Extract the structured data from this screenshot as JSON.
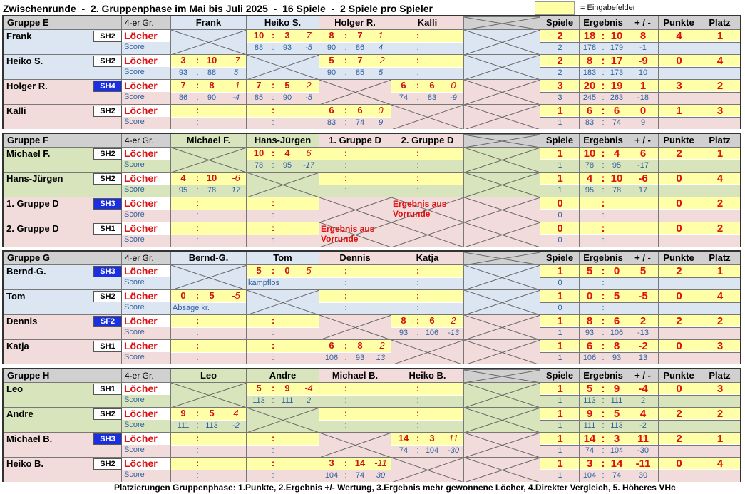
{
  "title": "Zwischenrunde  -  2. Gruppenphase im Mai bis Juli 2025  -  16 Spiele  -  2 Spiele pro Spieler",
  "legend": {
    "label": "= Eingabefelder",
    "color": "#ffffa8"
  },
  "footnote": "Platzierungen Gruppenphase: 1.Punkte, 2.Ergebnis +/- Wertung, 3.Ergebnis mehr gewonnene Löcher, 4.Direkter Vergleich, 5. Höheres VHc",
  "labels": {
    "group_size": "4-er Gr.",
    "holes": "Löcher",
    "score": "Score",
    "colon": ":"
  },
  "stat_headers": [
    "Spiele",
    "Ergebnis",
    "+ / -",
    "Punkte",
    "Platz"
  ],
  "colors": {
    "blue_row": "#dce6f2",
    "green_row": "#d8e4bc",
    "pink_row": "#f2dcdb",
    "yellow_input": "#ffffa8",
    "accent_red": "#e01010",
    "badge_blue": "#1a2fe0"
  },
  "groups": [
    {
      "name": "Gruppe E",
      "columns": [
        "Frank",
        "Heiko S.",
        "Holger R.",
        "Kalli"
      ],
      "players": [
        {
          "name": "Frank",
          "badge": "SH2",
          "badge_blue": false,
          "color": "blue",
          "results": [
            null,
            {
              "l": [
                "10",
                "3",
                "7"
              ],
              "s": [
                "88",
                "93",
                "-5"
              ]
            },
            {
              "l": [
                "8",
                "7",
                "1"
              ],
              "s": [
                "90",
                "86",
                "4"
              ]
            },
            {
              "l": [
                "",
                "",
                ""
              ],
              "s": [
                "",
                "",
                ""
              ]
            }
          ],
          "stats": {
            "spiele": "2",
            "erg_a": "18",
            "erg_b": "10",
            "diff": "8",
            "punkte": "4",
            "platz": "1",
            "s_spiele": "2",
            "s_a": "178",
            "s_b": "179",
            "s_diff": "-1"
          }
        },
        {
          "name": "Heiko S.",
          "badge": "SH2",
          "badge_blue": false,
          "color": "blue",
          "results": [
            {
              "l": [
                "3",
                "10",
                "-7"
              ],
              "s": [
                "93",
                "88",
                "5"
              ]
            },
            null,
            {
              "l": [
                "5",
                "7",
                "-2"
              ],
              "s": [
                "90",
                "85",
                "5"
              ]
            },
            {
              "l": [
                "",
                "",
                ""
              ],
              "s": [
                "",
                "",
                ""
              ]
            }
          ],
          "stats": {
            "spiele": "2",
            "erg_a": "8",
            "erg_b": "17",
            "diff": "-9",
            "punkte": "0",
            "platz": "4",
            "s_spiele": "2",
            "s_a": "183",
            "s_b": "173",
            "s_diff": "10"
          }
        },
        {
          "name": "Holger R.",
          "badge": "SH4",
          "badge_blue": true,
          "color": "pink",
          "results": [
            {
              "l": [
                "7",
                "8",
                "-1"
              ],
              "s": [
                "86",
                "90",
                "-4"
              ]
            },
            {
              "l": [
                "7",
                "5",
                "2"
              ],
              "s": [
                "85",
                "90",
                "-5"
              ]
            },
            null,
            {
              "l": [
                "6",
                "6",
                "0"
              ],
              "s": [
                "74",
                "83",
                "-9"
              ]
            }
          ],
          "stats": {
            "spiele": "3",
            "erg_a": "20",
            "erg_b": "19",
            "diff": "1",
            "punkte": "3",
            "platz": "2",
            "s_spiele": "3",
            "s_a": "245",
            "s_b": "263",
            "s_diff": "-18"
          }
        },
        {
          "name": "Kalli",
          "badge": "SH2",
          "badge_blue": false,
          "color": "pink",
          "results": [
            {
              "l": [
                "",
                "",
                ""
              ],
              "s": [
                "",
                "",
                ""
              ]
            },
            {
              "l": [
                "",
                "",
                ""
              ],
              "s": [
                "",
                "",
                ""
              ]
            },
            {
              "l": [
                "6",
                "6",
                "0"
              ],
              "s": [
                "83",
                "74",
                "9"
              ]
            },
            null
          ],
          "stats": {
            "spiele": "1",
            "erg_a": "6",
            "erg_b": "6",
            "diff": "0",
            "punkte": "1",
            "platz": "3",
            "s_spiele": "1",
            "s_a": "83",
            "s_b": "74",
            "s_diff": "9"
          }
        }
      ]
    },
    {
      "name": "Gruppe F",
      "columns": [
        "Michael F.",
        "Hans-Jürgen",
        "1. Gruppe D",
        "2. Gruppe D"
      ],
      "players": [
        {
          "name": "Michael F.",
          "badge": "SH2",
          "badge_blue": false,
          "color": "green",
          "results": [
            null,
            {
              "l": [
                "10",
                "4",
                "6"
              ],
              "s": [
                "78",
                "95",
                "-17"
              ]
            },
            {
              "l": [
                "",
                "",
                ""
              ],
              "s": [
                "",
                "",
                ""
              ]
            },
            {
              "l": [
                "",
                "",
                ""
              ],
              "s": [
                "",
                "",
                ""
              ]
            }
          ],
          "stats": {
            "spiele": "1",
            "erg_a": "10",
            "erg_b": "4",
            "diff": "6",
            "punkte": "2",
            "platz": "1",
            "s_spiele": "1",
            "s_a": "78",
            "s_b": "95",
            "s_diff": "-17"
          }
        },
        {
          "name": "Hans-Jürgen",
          "badge": "SH2",
          "badge_blue": false,
          "color": "green",
          "results": [
            {
              "l": [
                "4",
                "10",
                "-6"
              ],
              "s": [
                "95",
                "78",
                "17"
              ]
            },
            null,
            {
              "l": [
                "",
                "",
                ""
              ],
              "s": [
                "",
                "",
                ""
              ]
            },
            {
              "l": [
                "",
                "",
                ""
              ],
              "s": [
                "",
                "",
                ""
              ]
            }
          ],
          "stats": {
            "spiele": "1",
            "erg_a": "4",
            "erg_b": "10",
            "diff": "-6",
            "punkte": "0",
            "platz": "4",
            "s_spiele": "1",
            "s_a": "95",
            "s_b": "78",
            "s_diff": "17"
          }
        },
        {
          "name": "1. Gruppe D",
          "badge": "SH3",
          "badge_blue": true,
          "color": "pink",
          "results": [
            {
              "l": [
                "",
                "",
                ""
              ],
              "s": [
                "",
                "",
                ""
              ]
            },
            {
              "l": [
                "",
                "",
                ""
              ],
              "s": [
                "",
                "",
                ""
              ]
            },
            null,
            {
              "note": "Ergebnis aus Vorrunde"
            }
          ],
          "stats": {
            "spiele": "0",
            "erg_a": "",
            "erg_b": "",
            "diff": "",
            "punkte": "0",
            "platz": "2",
            "s_spiele": "0",
            "s_a": "",
            "s_b": "",
            "s_diff": ""
          }
        },
        {
          "name": "2. Gruppe D",
          "badge": "SH1",
          "badge_blue": false,
          "color": "pink",
          "results": [
            {
              "l": [
                "",
                "",
                ""
              ],
              "s": [
                "",
                "",
                ""
              ]
            },
            {
              "l": [
                "",
                "",
                ""
              ],
              "s": [
                "",
                "",
                ""
              ]
            },
            {
              "note": "Ergebnis aus Vorrunde"
            },
            null
          ],
          "stats": {
            "spiele": "0",
            "erg_a": "",
            "erg_b": "",
            "diff": "",
            "punkte": "0",
            "platz": "2",
            "s_spiele": "0",
            "s_a": "",
            "s_b": "",
            "s_diff": ""
          }
        }
      ]
    },
    {
      "name": "Gruppe G",
      "columns": [
        "Bernd-G.",
        "Tom",
        "Dennis",
        "Katja"
      ],
      "players": [
        {
          "name": "Bernd-G.",
          "badge": "SH3",
          "badge_blue": true,
          "color": "blue",
          "results": [
            null,
            {
              "l": [
                "5",
                "0",
                "5"
              ],
              "snote": "kampflos"
            },
            {
              "l": [
                "",
                "",
                ""
              ],
              "s": [
                "",
                "",
                ""
              ]
            },
            {
              "l": [
                "",
                "",
                ""
              ],
              "s": [
                "",
                "",
                ""
              ]
            }
          ],
          "stats": {
            "spiele": "1",
            "erg_a": "5",
            "erg_b": "0",
            "diff": "5",
            "punkte": "2",
            "platz": "1",
            "s_spiele": "0",
            "s_a": "",
            "s_b": "",
            "s_diff": ""
          }
        },
        {
          "name": "Tom",
          "badge": "SH2",
          "badge_blue": false,
          "color": "blue",
          "results": [
            {
              "l": [
                "0",
                "5",
                "-5"
              ],
              "snote": "Absage kr."
            },
            null,
            {
              "l": [
                "",
                "",
                ""
              ],
              "s": [
                "",
                "",
                ""
              ]
            },
            {
              "l": [
                "",
                "",
                ""
              ],
              "s": [
                "",
                "",
                ""
              ]
            }
          ],
          "stats": {
            "spiele": "1",
            "erg_a": "0",
            "erg_b": "5",
            "diff": "-5",
            "punkte": "0",
            "platz": "4",
            "s_spiele": "0",
            "s_a": "",
            "s_b": "",
            "s_diff": ""
          }
        },
        {
          "name": "Dennis",
          "badge": "SF2",
          "badge_blue": true,
          "color": "pink",
          "results": [
            {
              "l": [
                "",
                "",
                ""
              ],
              "s": [
                "",
                "",
                ""
              ]
            },
            {
              "l": [
                "",
                "",
                ""
              ],
              "s": [
                "",
                "",
                ""
              ]
            },
            null,
            {
              "l": [
                "8",
                "6",
                "2"
              ],
              "s": [
                "93",
                "106",
                "-13"
              ]
            }
          ],
          "stats": {
            "spiele": "1",
            "erg_a": "8",
            "erg_b": "6",
            "diff": "2",
            "punkte": "2",
            "platz": "2",
            "s_spiele": "1",
            "s_a": "93",
            "s_b": "106",
            "s_diff": "-13"
          }
        },
        {
          "name": "Katja",
          "badge": "SH1",
          "badge_blue": false,
          "color": "pink",
          "results": [
            {
              "l": [
                "",
                "",
                ""
              ],
              "s": [
                "",
                "",
                ""
              ]
            },
            {
              "l": [
                "",
                "",
                ""
              ],
              "s": [
                "",
                "",
                ""
              ]
            },
            {
              "l": [
                "6",
                "8",
                "-2"
              ],
              "s": [
                "106",
                "93",
                "13"
              ]
            },
            null
          ],
          "stats": {
            "spiele": "1",
            "erg_a": "6",
            "erg_b": "8",
            "diff": "-2",
            "punkte": "0",
            "platz": "3",
            "s_spiele": "1",
            "s_a": "106",
            "s_b": "93",
            "s_diff": "13"
          }
        }
      ]
    },
    {
      "name": "Gruppe H",
      "columns": [
        "Leo",
        "Andre",
        "Michael B.",
        "Heiko B."
      ],
      "players": [
        {
          "name": "Leo",
          "badge": "SH1",
          "badge_blue": false,
          "color": "green",
          "results": [
            null,
            {
              "l": [
                "5",
                "9",
                "-4"
              ],
              "s": [
                "113",
                "111",
                "2"
              ]
            },
            {
              "l": [
                "",
                "",
                ""
              ],
              "s": [
                "",
                "",
                ""
              ]
            },
            {
              "l": [
                "",
                "",
                ""
              ],
              "s": [
                "",
                "",
                ""
              ]
            }
          ],
          "stats": {
            "spiele": "1",
            "erg_a": "5",
            "erg_b": "9",
            "diff": "-4",
            "punkte": "0",
            "platz": "3",
            "s_spiele": "1",
            "s_a": "113",
            "s_b": "111",
            "s_diff": "2"
          }
        },
        {
          "name": "Andre",
          "badge": "SH2",
          "badge_blue": false,
          "color": "green",
          "results": [
            {
              "l": [
                "9",
                "5",
                "4"
              ],
              "s": [
                "111",
                "113",
                "-2"
              ]
            },
            null,
            {
              "l": [
                "",
                "",
                ""
              ],
              "s": [
                "",
                "",
                ""
              ]
            },
            {
              "l": [
                "",
                "",
                ""
              ],
              "s": [
                "",
                "",
                ""
              ]
            }
          ],
          "stats": {
            "spiele": "1",
            "erg_a": "9",
            "erg_b": "5",
            "diff": "4",
            "punkte": "2",
            "platz": "2",
            "s_spiele": "1",
            "s_a": "111",
            "s_b": "113",
            "s_diff": "-2"
          }
        },
        {
          "name": "Michael B.",
          "badge": "SH3",
          "badge_blue": true,
          "color": "pink",
          "results": [
            {
              "l": [
                "",
                "",
                ""
              ],
              "s": [
                "",
                "",
                ""
              ]
            },
            {
              "l": [
                "",
                "",
                ""
              ],
              "s": [
                "",
                "",
                ""
              ]
            },
            null,
            {
              "l": [
                "14",
                "3",
                "11"
              ],
              "s": [
                "74",
                "104",
                "-30"
              ]
            }
          ],
          "stats": {
            "spiele": "1",
            "erg_a": "14",
            "erg_b": "3",
            "diff": "11",
            "punkte": "2",
            "platz": "1",
            "s_spiele": "1",
            "s_a": "74",
            "s_b": "104",
            "s_diff": "-30"
          }
        },
        {
          "name": "Heiko B.",
          "badge": "SH2",
          "badge_blue": false,
          "color": "pink",
          "results": [
            {
              "l": [
                "",
                "",
                ""
              ],
              "s": [
                "",
                "",
                ""
              ]
            },
            {
              "l": [
                "",
                "",
                ""
              ],
              "s": [
                "",
                "",
                ""
              ]
            },
            {
              "l": [
                "3",
                "14",
                "-11"
              ],
              "s": [
                "104",
                "74",
                "30"
              ]
            },
            null
          ],
          "stats": {
            "spiele": "1",
            "erg_a": "3",
            "erg_b": "14",
            "diff": "-11",
            "punkte": "0",
            "platz": "4",
            "s_spiele": "1",
            "s_a": "104",
            "s_b": "74",
            "s_diff": "30"
          }
        }
      ]
    }
  ]
}
